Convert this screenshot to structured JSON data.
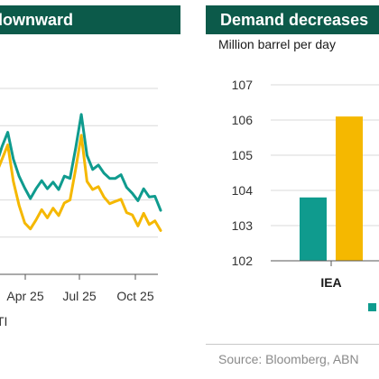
{
  "left_panel": {
    "title": "downward",
    "legend_label": "TI",
    "chart_data": {
      "type": "line",
      "x_ticks": [
        "Apr 25",
        "Jul 25",
        "Oct 25"
      ],
      "series": [
        {
          "color": "#0f9b8e",
          "values": [
            [
              0.0,
              69.8
            ],
            [
              0.5,
              72.2
            ],
            [
              1.0,
              74.1
            ],
            [
              1.5,
              70.5
            ],
            [
              2.0,
              68.2
            ],
            [
              2.5,
              66.6
            ],
            [
              3.0,
              65.2
            ],
            [
              3.5,
              66.5
            ],
            [
              4.0,
              67.6
            ],
            [
              4.5,
              66.5
            ],
            [
              5.0,
              67.4
            ],
            [
              5.5,
              66.4
            ],
            [
              6.0,
              68.2
            ],
            [
              6.5,
              67.9
            ],
            [
              7.0,
              72.0
            ],
            [
              7.5,
              76.5
            ],
            [
              8.0,
              71.0
            ],
            [
              8.5,
              69.1
            ],
            [
              9.0,
              69.7
            ],
            [
              9.5,
              68.6
            ],
            [
              10.0,
              67.9
            ],
            [
              10.5,
              67.9
            ],
            [
              11.0,
              68.4
            ],
            [
              11.5,
              66.7
            ],
            [
              12.0,
              65.9
            ],
            [
              12.5,
              64.9
            ],
            [
              13.0,
              66.5
            ],
            [
              13.5,
              65.4
            ],
            [
              14.0,
              65.5
            ],
            [
              14.5,
              63.6
            ]
          ]
        },
        {
          "color": "#f5b800",
          "values": [
            [
              0.0,
              68.6
            ],
            [
              0.5,
              70.5
            ],
            [
              1.0,
              72.4
            ],
            [
              1.5,
              67.5
            ],
            [
              2.0,
              64.3
            ],
            [
              2.5,
              61.9
            ],
            [
              3.0,
              61.1
            ],
            [
              3.5,
              62.3
            ],
            [
              4.0,
              63.7
            ],
            [
              4.5,
              62.6
            ],
            [
              5.0,
              63.9
            ],
            [
              5.5,
              62.9
            ],
            [
              6.0,
              64.6
            ],
            [
              6.5,
              65.0
            ],
            [
              7.0,
              69.2
            ],
            [
              7.5,
              73.7
            ],
            [
              8.0,
              67.5
            ],
            [
              8.5,
              66.4
            ],
            [
              9.0,
              66.8
            ],
            [
              9.5,
              65.4
            ],
            [
              10.0,
              64.5
            ],
            [
              10.5,
              64.8
            ],
            [
              11.0,
              65.1
            ],
            [
              11.5,
              63.3
            ],
            [
              12.0,
              63.0
            ],
            [
              12.5,
              61.5
            ],
            [
              13.0,
              63.2
            ],
            [
              13.5,
              61.7
            ],
            [
              14.0,
              62.2
            ],
            [
              14.5,
              60.9
            ]
          ]
        }
      ],
      "ylim": [
        55,
        80
      ],
      "grid": true
    }
  },
  "right_panel": {
    "title": "Demand decreases",
    "subtitle": "Million barrel per day",
    "chart_data": {
      "type": "bar",
      "categories": [
        "IEA"
      ],
      "series": [
        {
          "color": "#0f9b8e",
          "values": [
            103.8
          ]
        },
        {
          "color": "#f5b800",
          "values": [
            106.1
          ]
        }
      ],
      "y_ticks": [
        102,
        103,
        104,
        105,
        106,
        107
      ],
      "ylim": [
        102,
        107
      ],
      "grid": true
    },
    "source": "Source: Bloomberg, ABN"
  }
}
